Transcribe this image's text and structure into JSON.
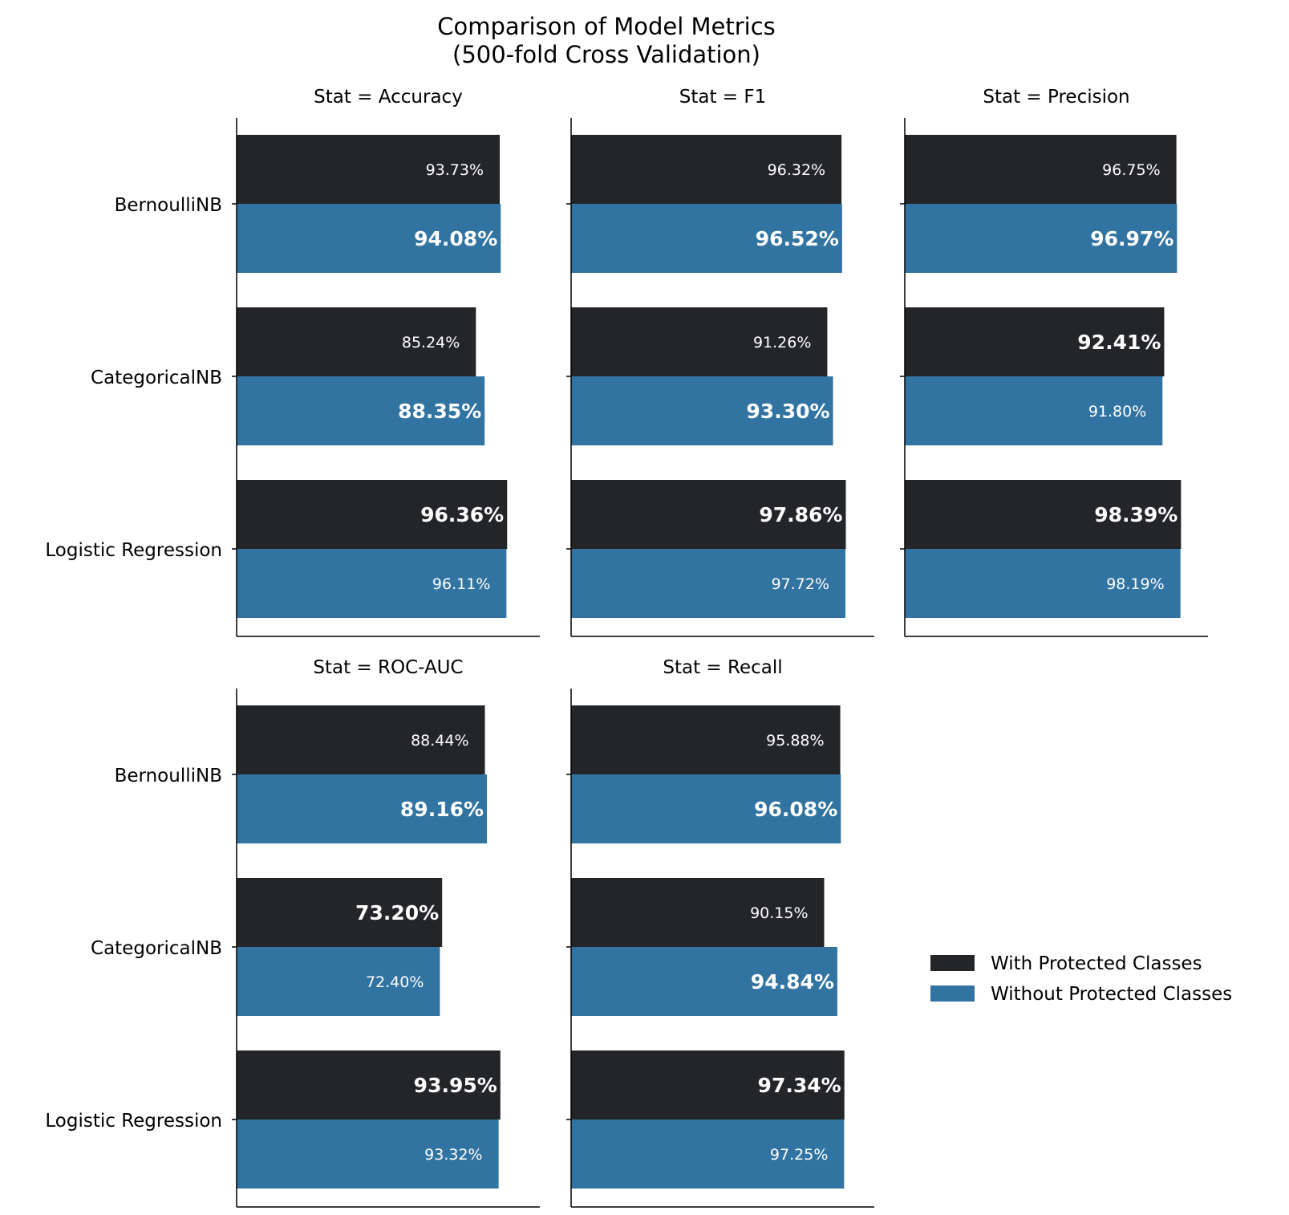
{
  "chart_data": {
    "type": "bar",
    "orientation": "horizontal",
    "title": "Comparison of Model Metrics",
    "subtitle": "(500-fold Cross Validation)",
    "categories": [
      "BernoulliNB",
      "CategoricalNB",
      "Logistic Regression"
    ],
    "legend": {
      "placement": "right",
      "entries": [
        "With Protected Classes",
        "Without Protected Classes"
      ]
    },
    "colors": {
      "with": "#232529",
      "without": "#3274a1",
      "label": "#ffffff",
      "axis": "#000000"
    },
    "xlim": [
      0,
      1.08
    ],
    "grid": false,
    "panels": [
      {
        "title": "Stat = Accuracy",
        "with": {
          "values": [
            0.9373,
            0.8524,
            0.9636
          ],
          "labels": [
            "93.73%",
            "85.24%",
            "96.36%"
          ]
        },
        "without": {
          "values": [
            0.9408,
            0.8835,
            0.9611
          ],
          "labels": [
            "94.08%",
            "88.35%",
            "96.11%"
          ]
        }
      },
      {
        "title": "Stat = F1",
        "with": {
          "values": [
            0.9632,
            0.9126,
            0.9786
          ],
          "labels": [
            "96.32%",
            "91.26%",
            "97.86%"
          ]
        },
        "without": {
          "values": [
            0.9652,
            0.933,
            0.9772
          ],
          "labels": [
            "96.52%",
            "93.30%",
            "97.72%"
          ]
        }
      },
      {
        "title": "Stat = Precision",
        "with": {
          "values": [
            0.9675,
            0.9241,
            0.9839
          ],
          "labels": [
            "96.75%",
            "92.41%",
            "98.39%"
          ]
        },
        "without": {
          "values": [
            0.9697,
            0.918,
            0.9819
          ],
          "labels": [
            "96.97%",
            "91.80%",
            "98.19%"
          ]
        }
      },
      {
        "title": "Stat = ROC-AUC",
        "with": {
          "values": [
            0.8844,
            0.732,
            0.9395
          ],
          "labels": [
            "88.44%",
            "73.20%",
            "93.95%"
          ]
        },
        "without": {
          "values": [
            0.8916,
            0.724,
            0.9332
          ],
          "labels": [
            "89.16%",
            "72.40%",
            "93.32%"
          ]
        }
      },
      {
        "title": "Stat = Recall",
        "with": {
          "values": [
            0.9588,
            0.9015,
            0.9734
          ],
          "labels": [
            "95.88%",
            "90.15%",
            "97.34%"
          ]
        },
        "without": {
          "values": [
            0.9608,
            0.9484,
            0.9725
          ],
          "labels": [
            "96.08%",
            "94.84%",
            "97.25%"
          ]
        }
      }
    ]
  }
}
